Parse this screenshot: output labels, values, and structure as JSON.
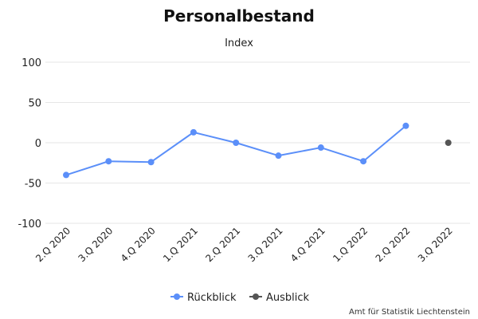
{
  "chart_data": {
    "type": "line",
    "title": "Personalbestand",
    "subtitle": "Index",
    "xlabel": "",
    "ylabel": "",
    "categories": [
      "2.Q 2020",
      "3.Q 2020",
      "4.Q 2020",
      "1.Q 2021",
      "2.Q 2021",
      "3.Q 2021",
      "4.Q 2021",
      "1.Q 2022",
      "2.Q 2022",
      "3.Q 2022"
    ],
    "ylim": [
      -100,
      100
    ],
    "yticks": [
      100,
      50,
      0,
      -50,
      -100
    ],
    "grid": true,
    "legend_position": "bottom-center",
    "series": [
      {
        "name": "Rückblick",
        "color": "#5b8ff9",
        "values": [
          -40,
          -23,
          -24,
          13,
          0,
          -16,
          -6,
          -23,
          21,
          null
        ]
      },
      {
        "name": "Ausblick",
        "color": "#555555",
        "values": [
          null,
          null,
          null,
          null,
          null,
          null,
          null,
          null,
          null,
          0
        ]
      }
    ],
    "credit": "Amt für Statistik Liechtenstein"
  }
}
